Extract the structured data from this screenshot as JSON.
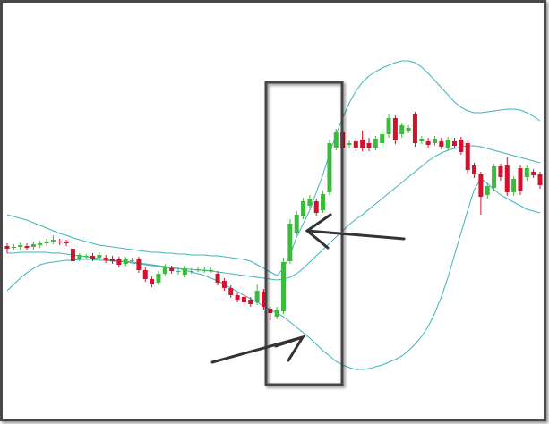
{
  "chart_data": {
    "type": "candlestick",
    "open": [
      199,
      197,
      198,
      199,
      198,
      200,
      202,
      204,
      204,
      204,
      196,
      184,
      187,
      188,
      186,
      186,
      185,
      184,
      179,
      182,
      184,
      172,
      162,
      158,
      168,
      174,
      171,
      167,
      171,
      172,
      171,
      172,
      168,
      160,
      152,
      144,
      142,
      139,
      136,
      148,
      129,
      120,
      126,
      182,
      214,
      232,
      244,
      249,
      239,
      259,
      309,
      326,
      312,
      316,
      318,
      314,
      309,
      314,
      324,
      342,
      324,
      328,
      346,
      316,
      316,
      314,
      316,
      309,
      316,
      318,
      314,
      289,
      279,
      256,
      264,
      288,
      289,
      259,
      286,
      276,
      282,
      279
    ],
    "high": [
      202,
      201,
      203,
      202,
      204,
      205,
      207,
      211,
      207,
      206,
      199,
      191,
      190,
      191,
      192,
      189,
      188,
      187,
      187,
      186,
      187,
      175,
      165,
      171,
      179,
      177,
      175,
      177,
      174,
      176,
      175,
      175,
      171,
      163,
      155,
      147,
      145,
      142,
      156,
      151,
      131,
      131,
      186,
      229,
      238,
      253,
      256,
      252,
      261,
      318,
      330,
      361,
      317,
      320,
      328,
      320,
      322,
      328,
      346,
      345,
      337,
      334,
      349,
      322,
      320,
      322,
      320,
      321,
      320,
      321,
      317,
      292,
      282,
      269,
      291,
      291,
      298,
      277,
      289,
      289,
      285,
      282
    ],
    "low": [
      191,
      194,
      195,
      194,
      195,
      197,
      199,
      201,
      200,
      199,
      179,
      182,
      185,
      182,
      183,
      180,
      179,
      175,
      176,
      180,
      169,
      159,
      153,
      155,
      165,
      168,
      167,
      164,
      168,
      170,
      169,
      169,
      155,
      149,
      141,
      136,
      133,
      131,
      133,
      128,
      116,
      117,
      123,
      179,
      211,
      229,
      241,
      233,
      236,
      256,
      306,
      306,
      309,
      305,
      305,
      305,
      306,
      311,
      320,
      313,
      320,
      325,
      310,
      313,
      309,
      311,
      307,
      306,
      308,
      301,
      280,
      275,
      234,
      252,
      260,
      272,
      255,
      255,
      256,
      272,
      275,
      263
    ],
    "close": [
      196,
      198,
      200,
      197,
      201,
      202,
      204,
      206,
      203,
      202,
      182,
      189,
      188,
      185,
      189,
      183,
      182,
      178,
      184,
      183,
      172,
      162,
      156,
      168,
      176,
      171,
      171,
      174,
      171,
      173,
      172,
      172,
      158,
      152,
      144,
      139,
      136,
      134,
      149,
      131,
      124,
      128,
      181,
      224,
      234,
      249,
      252,
      236,
      257,
      314,
      326,
      309,
      314,
      309,
      308,
      308,
      319,
      324,
      342,
      317,
      334,
      331,
      314,
      319,
      312,
      319,
      310,
      318,
      311,
      304,
      284,
      279,
      254,
      266,
      288,
      276,
      259,
      274,
      260,
      286,
      278,
      267
    ],
    "up_color": "#3cba3c",
    "down_color": "#d4102c",
    "bands": [
      {
        "color": "#3eb3bd",
        "values": [
          234,
          232,
          230,
          228,
          225,
          222,
          219,
          216,
          213,
          211,
          208,
          206,
          204,
          202,
          200,
          199,
          198,
          197,
          196,
          195,
          194,
          193,
          192,
          192,
          191,
          191,
          190,
          190,
          189,
          189,
          189,
          188,
          188,
          187,
          186,
          185,
          184,
          182,
          178,
          174,
          170,
          166,
          174,
          189,
          209,
          224,
          239,
          259,
          279,
          302,
          324,
          342,
          359,
          372,
          382,
          389,
          394,
          398,
          401,
          404,
          406,
          406,
          404,
          399,
          392,
          384,
          376,
          368,
          360,
          354,
          350,
          348,
          348,
          349,
          350,
          351,
          352,
          352,
          351,
          348,
          344,
          339
        ]
      },
      {
        "color": "#3eb3bd",
        "values": [
          191,
          191,
          192,
          192,
          192,
          192,
          192,
          191,
          191,
          190,
          189,
          188,
          187,
          186,
          185,
          184,
          183,
          182,
          181,
          180,
          179,
          178,
          177,
          176,
          175,
          174,
          174,
          173,
          173,
          172,
          172,
          171,
          170,
          169,
          168,
          167,
          166,
          165,
          164,
          163,
          162,
          161,
          162,
          164,
          168,
          174,
          181,
          188,
          195,
          202,
          209,
          216,
          223,
          229,
          234,
          240,
          246,
          252,
          258,
          264,
          270,
          276,
          282,
          288,
          294,
          299,
          303,
          306,
          308,
          310,
          311,
          311,
          310,
          308,
          306,
          304,
          302,
          300,
          298,
          296,
          294,
          292
        ]
      },
      {
        "color": "#3eb3bd",
        "values": [
          149,
          156,
          163,
          169,
          174,
          178,
          180,
          181,
          182,
          183,
          183,
          184,
          184,
          184,
          183,
          183,
          182,
          182,
          182,
          181,
          180,
          179,
          178,
          177,
          176,
          175,
          174,
          172,
          170,
          168,
          166,
          163,
          160,
          156,
          152,
          148,
          144,
          140,
          136,
          132,
          128,
          124,
          120,
          114,
          108,
          102,
          96,
          89,
          82,
          76,
          70,
          66,
          63,
          61,
          61,
          62,
          64,
          66,
          69,
          72,
          76,
          82,
          89,
          98,
          109,
          124,
          142,
          164,
          189,
          214,
          239,
          262,
          274,
          269,
          262,
          256,
          252,
          248,
          244,
          240,
          238,
          236
        ]
      }
    ],
    "ylim": [
      0,
      474
    ]
  }
}
